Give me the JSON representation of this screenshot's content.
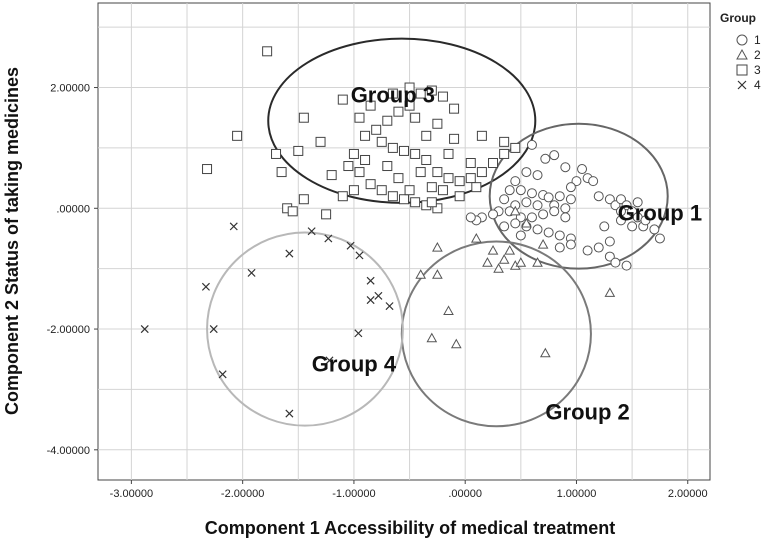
{
  "chart_data": {
    "type": "scatter",
    "xlabel": "Component 1  Accessibility of medical treatment",
    "ylabel": "Component 2 Status of taking medicines",
    "xlim": [
      -3.3,
      2.2
    ],
    "ylim": [
      -4.5,
      3.4
    ],
    "xticks": [
      {
        "value": -3,
        "label": "-3.00000"
      },
      {
        "value": -2,
        "label": "-2.00000"
      },
      {
        "value": -1,
        "label": "-1.00000"
      },
      {
        "value": 0,
        "label": ".00000"
      },
      {
        "value": 1,
        "label": "1.00000"
      },
      {
        "value": 2,
        "label": "2.00000"
      }
    ],
    "yticks": [
      {
        "value": 2,
        "label": "2.00000"
      },
      {
        "value": 0,
        "label": ".00000"
      },
      {
        "value": -2,
        "label": "-2.00000"
      },
      {
        "value": -4,
        "label": "-4.00000"
      }
    ],
    "grid": true,
    "legend": {
      "title": "Group",
      "position": "top-right",
      "entries": [
        {
          "label": "1",
          "marker": "circle"
        },
        {
          "label": "2",
          "marker": "triangle"
        },
        {
          "label": "3",
          "marker": "square"
        },
        {
          "label": "4",
          "marker": "x"
        }
      ]
    },
    "series": [
      {
        "name": "1",
        "marker": "circle",
        "points": [
          [
            0.6,
            1.05
          ],
          [
            0.72,
            0.82
          ],
          [
            0.8,
            0.88
          ],
          [
            0.9,
            0.68
          ],
          [
            1.05,
            0.65
          ],
          [
            1.0,
            0.45
          ],
          [
            0.95,
            0.35
          ],
          [
            0.55,
            0.6
          ],
          [
            0.65,
            0.55
          ],
          [
            0.45,
            0.45
          ],
          [
            0.5,
            0.3
          ],
          [
            0.6,
            0.25
          ],
          [
            0.7,
            0.22
          ],
          [
            0.75,
            0.18
          ],
          [
            0.85,
            0.2
          ],
          [
            0.95,
            0.15
          ],
          [
            0.55,
            0.1
          ],
          [
            0.65,
            0.05
          ],
          [
            0.8,
            0.05
          ],
          [
            0.9,
            0.0
          ],
          [
            0.45,
            0.05
          ],
          [
            0.4,
            -0.05
          ],
          [
            0.5,
            -0.15
          ],
          [
            0.6,
            -0.15
          ],
          [
            0.7,
            -0.1
          ],
          [
            0.8,
            -0.05
          ],
          [
            0.9,
            -0.15
          ],
          [
            0.45,
            -0.25
          ],
          [
            0.55,
            -0.3
          ],
          [
            0.65,
            -0.35
          ],
          [
            0.75,
            -0.4
          ],
          [
            0.85,
            -0.45
          ],
          [
            0.95,
            -0.5
          ],
          [
            0.5,
            -0.45
          ],
          [
            0.35,
            -0.3
          ],
          [
            1.1,
            0.5
          ],
          [
            1.15,
            0.45
          ],
          [
            1.2,
            0.2
          ],
          [
            1.3,
            0.15
          ],
          [
            1.35,
            0.05
          ],
          [
            1.4,
            0.15
          ],
          [
            1.45,
            0.05
          ],
          [
            1.5,
            -0.05
          ],
          [
            1.55,
            -0.15
          ],
          [
            1.4,
            -0.2
          ],
          [
            1.5,
            -0.3
          ],
          [
            1.6,
            -0.3
          ],
          [
            1.7,
            -0.35
          ],
          [
            1.75,
            -0.5
          ],
          [
            1.3,
            -0.55
          ],
          [
            1.2,
            -0.65
          ],
          [
            1.3,
            -0.8
          ],
          [
            1.35,
            -0.9
          ],
          [
            1.45,
            -0.95
          ],
          [
            1.25,
            -0.3
          ],
          [
            1.1,
            -0.7
          ],
          [
            0.95,
            -0.6
          ],
          [
            0.85,
            -0.65
          ],
          [
            0.3,
            -0.05
          ],
          [
            0.25,
            -0.1
          ],
          [
            0.15,
            -0.15
          ],
          [
            0.1,
            -0.2
          ],
          [
            0.05,
            -0.15
          ],
          [
            0.35,
            0.15
          ],
          [
            0.4,
            0.3
          ],
          [
            1.4,
            -0.05
          ],
          [
            1.55,
            0.1
          ],
          [
            1.62,
            -0.2
          ]
        ]
      },
      {
        "name": "2",
        "marker": "triangle",
        "points": [
          [
            -0.25,
            -0.65
          ],
          [
            -0.4,
            -1.1
          ],
          [
            -0.25,
            -1.1
          ],
          [
            0.25,
            -0.7
          ],
          [
            0.35,
            -0.85
          ],
          [
            0.45,
            -0.95
          ],
          [
            0.3,
            -1.0
          ],
          [
            0.2,
            -0.9
          ],
          [
            0.5,
            -0.9
          ],
          [
            0.65,
            -0.9
          ],
          [
            0.7,
            -0.6
          ],
          [
            1.3,
            -1.4
          ],
          [
            -0.15,
            -1.7
          ],
          [
            -0.3,
            -2.15
          ],
          [
            -0.08,
            -2.25
          ],
          [
            0.72,
            -2.4
          ],
          [
            0.45,
            -0.05
          ],
          [
            0.55,
            -0.25
          ],
          [
            0.4,
            -0.7
          ],
          [
            0.1,
            -0.5
          ]
        ]
      },
      {
        "name": "3",
        "marker": "square",
        "points": [
          [
            -1.78,
            2.6
          ],
          [
            -2.32,
            0.65
          ],
          [
            -2.05,
            1.2
          ],
          [
            -1.65,
            0.6
          ],
          [
            -1.45,
            1.5
          ],
          [
            -1.7,
            0.9
          ],
          [
            -1.5,
            0.95
          ],
          [
            -1.3,
            1.1
          ],
          [
            -1.1,
            1.8
          ],
          [
            -1.0,
            0.9
          ],
          [
            -0.9,
            1.2
          ],
          [
            -0.8,
            1.3
          ],
          [
            -0.7,
            1.45
          ],
          [
            -0.6,
            1.6
          ],
          [
            -0.5,
            1.7
          ],
          [
            -0.4,
            1.9
          ],
          [
            -0.3,
            1.95
          ],
          [
            -0.2,
            1.85
          ],
          [
            -0.1,
            1.65
          ],
          [
            -0.5,
            2.0
          ],
          [
            -0.65,
            1.9
          ],
          [
            -0.85,
            1.7
          ],
          [
            -0.95,
            1.5
          ],
          [
            -0.75,
            1.1
          ],
          [
            -0.65,
            1.0
          ],
          [
            -0.55,
            0.95
          ],
          [
            -0.45,
            0.9
          ],
          [
            -0.35,
            0.8
          ],
          [
            -0.25,
            0.6
          ],
          [
            -0.15,
            0.5
          ],
          [
            -0.05,
            0.45
          ],
          [
            0.05,
            0.5
          ],
          [
            0.15,
            0.6
          ],
          [
            0.25,
            0.75
          ],
          [
            0.35,
            0.9
          ],
          [
            -0.85,
            0.4
          ],
          [
            -0.75,
            0.3
          ],
          [
            -0.65,
            0.2
          ],
          [
            -0.55,
            0.15
          ],
          [
            -0.45,
            0.1
          ],
          [
            -0.35,
            0.05
          ],
          [
            -0.25,
            0.0
          ],
          [
            -0.95,
            0.6
          ],
          [
            -1.05,
            0.7
          ],
          [
            -0.9,
            0.8
          ],
          [
            -1.2,
            0.55
          ],
          [
            -1.45,
            0.15
          ],
          [
            -1.6,
            0.0
          ],
          [
            -0.1,
            1.15
          ],
          [
            0.15,
            1.2
          ],
          [
            0.35,
            1.1
          ],
          [
            0.45,
            1.0
          ],
          [
            -0.4,
            0.6
          ],
          [
            -0.3,
            0.35
          ],
          [
            -0.2,
            0.3
          ],
          [
            -0.05,
            0.2
          ],
          [
            -1.0,
            0.3
          ],
          [
            -1.1,
            0.2
          ],
          [
            -0.6,
            0.5
          ],
          [
            -0.7,
            0.7
          ],
          [
            -0.5,
            0.3
          ],
          [
            -0.35,
            1.2
          ],
          [
            -0.25,
            1.4
          ],
          [
            -0.45,
            1.5
          ],
          [
            -0.15,
            0.9
          ],
          [
            0.05,
            0.75
          ],
          [
            -1.25,
            -0.1
          ],
          [
            -1.55,
            -0.05
          ],
          [
            -0.3,
            0.1
          ],
          [
            0.1,
            0.35
          ]
        ]
      },
      {
        "name": "4",
        "marker": "x",
        "points": [
          [
            -2.88,
            -2.0
          ],
          [
            -2.33,
            -1.3
          ],
          [
            -2.26,
            -2.0
          ],
          [
            -2.18,
            -2.75
          ],
          [
            -2.08,
            -0.3
          ],
          [
            -1.92,
            -1.07
          ],
          [
            -1.58,
            -0.75
          ],
          [
            -1.38,
            -0.38
          ],
          [
            -1.23,
            -0.5
          ],
          [
            -1.03,
            -0.62
          ],
          [
            -0.95,
            -0.78
          ],
          [
            -0.85,
            -1.2
          ],
          [
            -0.85,
            -1.52
          ],
          [
            -0.78,
            -1.45
          ],
          [
            -0.68,
            -1.62
          ],
          [
            -0.96,
            -2.07
          ],
          [
            -1.22,
            -2.52
          ],
          [
            -1.58,
            -3.4
          ]
        ]
      }
    ],
    "ellipses": [
      {
        "group": "Group 3",
        "cx": -0.57,
        "cy": 1.45,
        "rx": 1.2,
        "ry": 1.36,
        "color": "#2a2a2a"
      },
      {
        "group": "Group 1",
        "cx": 1.02,
        "cy": 0.2,
        "rx": 0.8,
        "ry": 1.2,
        "color": "#666666"
      },
      {
        "group": "Group 2",
        "cx": 0.28,
        "cy": -2.08,
        "rx": 0.85,
        "ry": 1.53,
        "color": "#7a7a7a"
      },
      {
        "group": "Group 4",
        "cx": -1.44,
        "cy": -2.0,
        "rx": 0.88,
        "ry": 1.6,
        "color": "#b8b8b8"
      }
    ],
    "annotations": [
      {
        "text": "Group 3",
        "x": -0.65,
        "y": 1.75
      },
      {
        "text": "Group 1",
        "x": 1.75,
        "y": -0.2
      },
      {
        "text": "Group 2",
        "x": 1.1,
        "y": -3.5
      },
      {
        "text": "Group 4",
        "x": -1.0,
        "y": -2.7
      }
    ]
  }
}
